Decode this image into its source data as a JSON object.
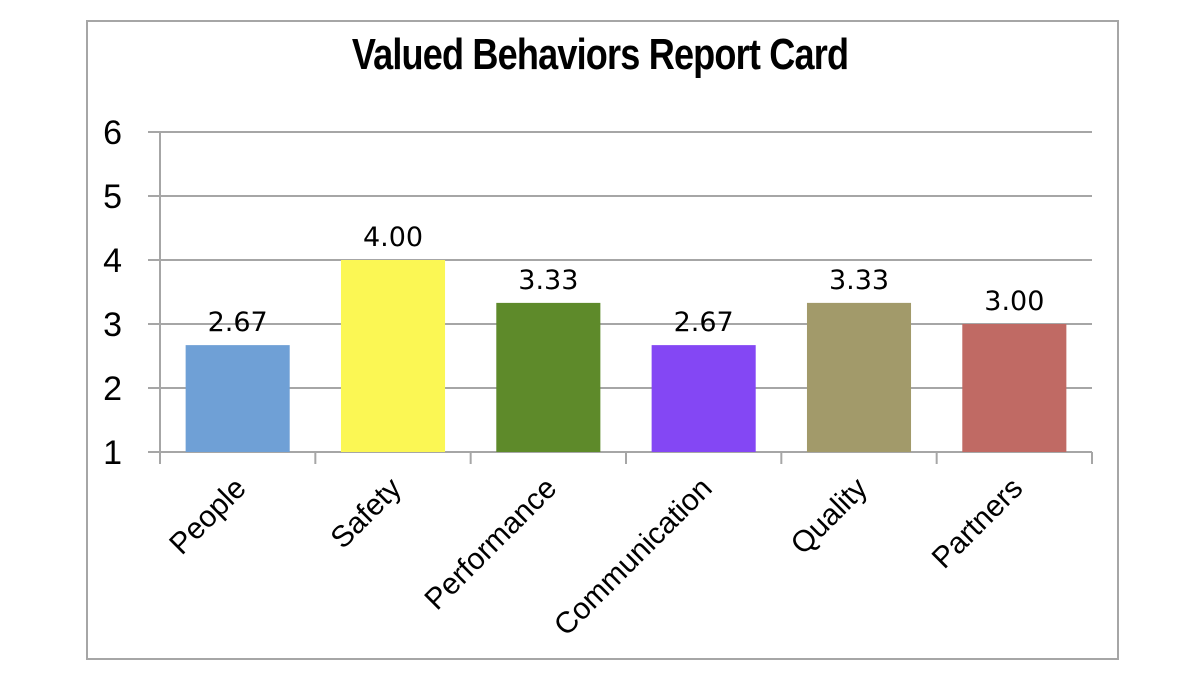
{
  "chart_data": {
    "type": "bar",
    "title": "Valued Behaviors Report Card",
    "xlabel": "",
    "ylabel": "",
    "categories": [
      "People",
      "Safety",
      "Performance",
      "Communication",
      "Quality",
      "Partners"
    ],
    "values": [
      2.67,
      4.0,
      3.33,
      2.67,
      3.33,
      3.0
    ],
    "data_labels": [
      "2.67",
      "4.00",
      "3.33",
      "2.67",
      "3.33",
      "3.00"
    ],
    "colors": [
      "#6fa0d6",
      "#fbf754",
      "#5e8a2a",
      "#8447f4",
      "#a29a6a",
      "#c06a64"
    ],
    "ylim": [
      1,
      6
    ],
    "yticks": [
      1,
      2,
      3,
      4,
      5,
      6
    ],
    "grid": true,
    "legend": "none"
  }
}
